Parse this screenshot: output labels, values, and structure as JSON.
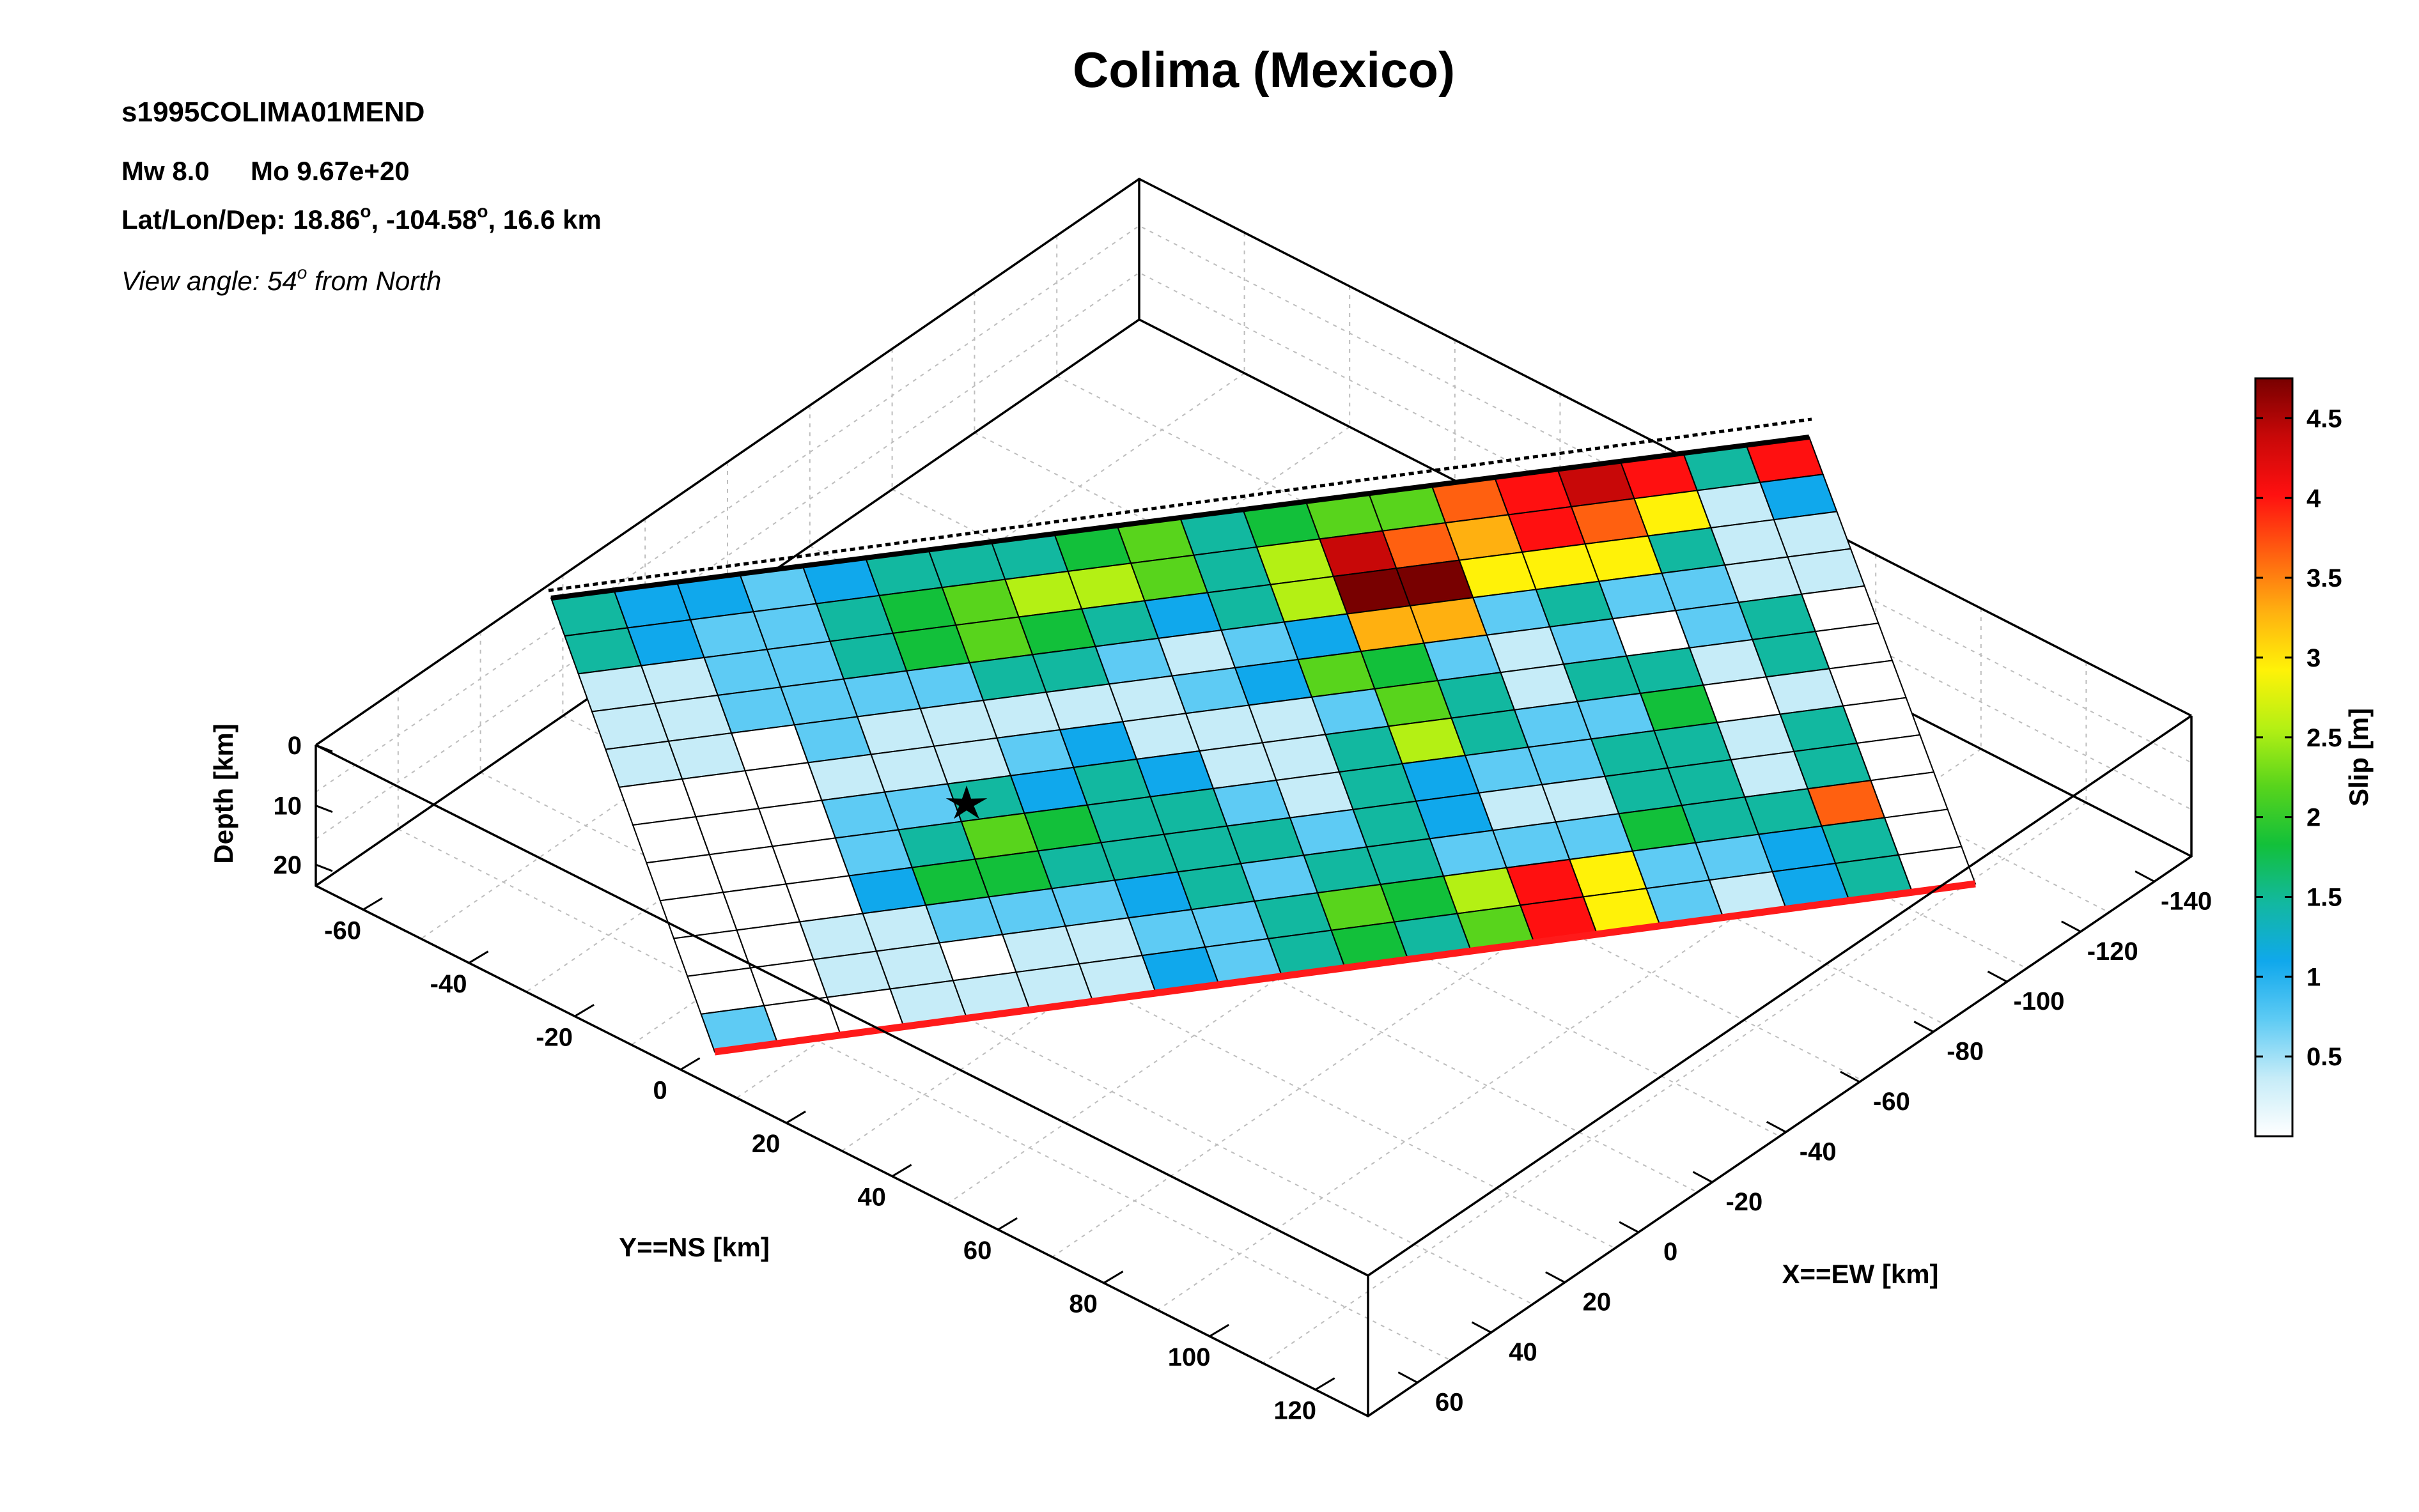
{
  "figure": {
    "title": "Colima (Mexico)",
    "event_id": "s1995COLIMA01MEND",
    "magnitude": "Mw 8.0",
    "moment": "Mo 9.67e+20",
    "location_prefix": "Lat/Lon/Dep: 18.86",
    "location_lon": ", -104.58",
    "location_dep": ", 16.6 km",
    "degree_mark": "o",
    "view_prefix": "View angle:  54",
    "view_suffix": " from North"
  },
  "chart_data": {
    "type": "heatmap",
    "title": "Colima (Mexico)",
    "xlabel": "X==EW [km]",
    "ylabel": "Y==NS [km]",
    "zlabel": "Depth [km]",
    "colorbar_label": "Slip [m]",
    "x_ticks": [
      60,
      40,
      20,
      0,
      -20,
      -40,
      -60,
      -80,
      -100,
      -120,
      -140
    ],
    "y_ticks": [
      -60,
      -40,
      -20,
      0,
      20,
      40,
      60,
      80,
      100,
      120
    ],
    "z_ticks": [
      0,
      10,
      20
    ],
    "colorbar_ticks": [
      0.5,
      1,
      1.5,
      2,
      2.5,
      3,
      3.5,
      4,
      4.5
    ],
    "colorbar_range": [
      0,
      4.75
    ],
    "colormap": [
      "#ffffff",
      "#c6ecf8",
      "#5ecbf4",
      "#10a8ec",
      "#12b8a0",
      "#12c03a",
      "#58d41c",
      "#b4f014",
      "#fff208",
      "#ffb010",
      "#ff6010",
      "#ff1010",
      "#c80808",
      "#780000"
    ],
    "grid": true,
    "view_angle": "54 from North",
    "hypocenter_marker": "star",
    "subfault_rows": 12,
    "subfault_cols": 20,
    "slip": [
      [
        1.4,
        1.1,
        1.0,
        0.9,
        1.0,
        1.3,
        1.5,
        1.6,
        2.0,
        2.1,
        1.5,
        1.8,
        2.2,
        2.1,
        3.8,
        4.2,
        4.5,
        4.0,
        1.6,
        4.2
      ],
      [
        1.5,
        1.2,
        0.9,
        0.9,
        1.5,
        1.7,
        2.3,
        2.5,
        2.5,
        2.3,
        1.5,
        2.7,
        4.5,
        3.7,
        3.3,
        4.2,
        3.8,
        2.8,
        0.5,
        1.0
      ],
      [
        0.3,
        0.4,
        0.8,
        0.8,
        1.5,
        1.8,
        2.3,
        1.7,
        1.5,
        1.2,
        1.3,
        2.4,
        4.7,
        4.6,
        2.9,
        3.1,
        2.9,
        1.5,
        0.4,
        0.4
      ],
      [
        0.2,
        0.3,
        0.6,
        0.7,
        0.6,
        0.8,
        1.5,
        1.4,
        0.8,
        0.4,
        0.6,
        1.0,
        3.3,
        3.2,
        0.9,
        1.5,
        0.8,
        0.7,
        0.5,
        0.5
      ],
      [
        0.2,
        0.2,
        0.1,
        0.6,
        0.5,
        0.3,
        0.2,
        0.4,
        0.3,
        0.6,
        1.1,
        2.2,
        1.7,
        0.6,
        0.5,
        0.6,
        0.0,
        0.6,
        1.5,
        0.0
      ],
      [
        0.0,
        0.0,
        0.0,
        0.4,
        0.3,
        0.3,
        0.6,
        1.0,
        0.5,
        0.3,
        0.3,
        0.7,
        2.2,
        1.3,
        0.5,
        1.3,
        1.4,
        0.2,
        1.3,
        0.0
      ],
      [
        0.0,
        0.0,
        0.0,
        0.6,
        0.8,
        1.4,
        1.2,
        1.4,
        1.1,
        0.5,
        0.4,
        1.4,
        2.7,
        1.5,
        0.8,
        0.9,
        2.0,
        0.1,
        0.4,
        0.0
      ],
      [
        0.0,
        0.0,
        0.0,
        0.9,
        1.5,
        2.2,
        1.8,
        1.4,
        1.3,
        0.9,
        0.4,
        1.5,
        1.0,
        0.7,
        0.8,
        1.3,
        1.6,
        0.4,
        1.4,
        0.0
      ],
      [
        0.0,
        0.0,
        0.0,
        1.0,
        2.0,
        1.8,
        1.5,
        1.4,
        1.6,
        1.4,
        0.6,
        1.4,
        1.2,
        0.5,
        0.4,
        1.6,
        1.4,
        0.3,
        1.6,
        0.0
      ],
      [
        0.0,
        0.0,
        0.2,
        0.2,
        0.8,
        0.6,
        0.9,
        1.2,
        1.5,
        0.6,
        1.4,
        1.6,
        0.9,
        0.8,
        0.7,
        1.8,
        1.5,
        1.4,
        3.5,
        0.0
      ],
      [
        0.0,
        0.0,
        0.2,
        0.5,
        0.0,
        0.4,
        0.5,
        0.6,
        0.7,
        1.4,
        2.2,
        2.0,
        2.5,
        4.1,
        2.8,
        0.7,
        0.6,
        1.2,
        1.3,
        0.0
      ],
      [
        0.6,
        0.0,
        0.0,
        0.3,
        0.3,
        0.2,
        0.3,
        1.2,
        0.6,
        1.4,
        1.9,
        1.6,
        2.2,
        4.0,
        2.8,
        0.6,
        0.5,
        1.2,
        1.4,
        0.0
      ]
    ]
  }
}
